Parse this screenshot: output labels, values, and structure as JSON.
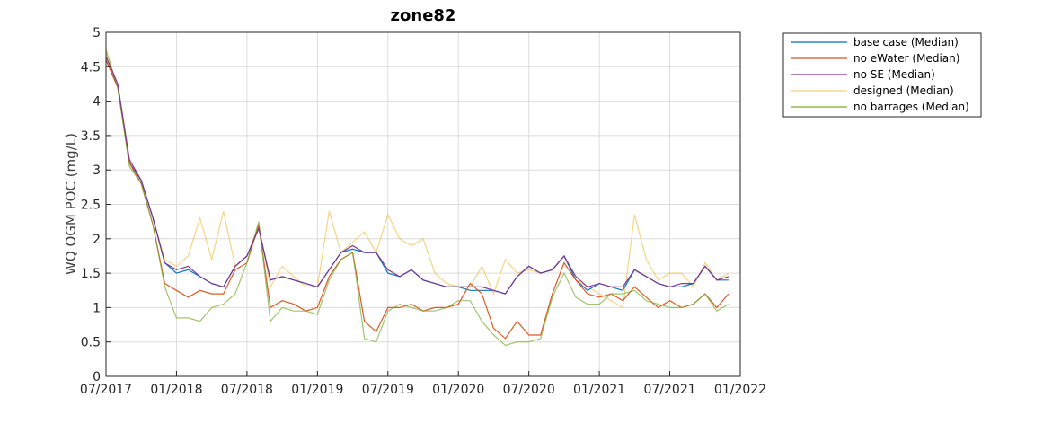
{
  "chart_data": {
    "type": "line",
    "title": "zone82",
    "xlabel": "",
    "ylabel": "WQ OGM POC (mg/L)",
    "ylim": [
      0,
      5
    ],
    "yticks": [
      "0",
      "0.5",
      "1",
      "1.5",
      "2",
      "2.5",
      "3",
      "3.5",
      "4",
      "4.5",
      "5"
    ],
    "xticks": [
      "07/2017",
      "01/2018",
      "07/2018",
      "01/2019",
      "07/2019",
      "01/2020",
      "07/2020",
      "01/2021",
      "07/2021",
      "01/2022"
    ],
    "grid": true,
    "legend_position": "outside-top-right",
    "series": [
      {
        "name": "base case (Median)",
        "color": "#0072bd",
        "points": [
          [
            0,
            4.6
          ],
          [
            1,
            4.2
          ],
          [
            2,
            3.1
          ],
          [
            3,
            2.85
          ],
          [
            4,
            2.3
          ],
          [
            5,
            1.65
          ],
          [
            6,
            1.5
          ],
          [
            7,
            1.55
          ],
          [
            8,
            1.45
          ],
          [
            9,
            1.35
          ],
          [
            10,
            1.3
          ],
          [
            11,
            1.6
          ],
          [
            12,
            1.75
          ],
          [
            13,
            2.15
          ],
          [
            14,
            1.4
          ],
          [
            15,
            1.45
          ],
          [
            16,
            1.4
          ],
          [
            17,
            1.35
          ],
          [
            18,
            1.3
          ],
          [
            19,
            1.55
          ],
          [
            20,
            1.8
          ],
          [
            21,
            1.85
          ],
          [
            22,
            1.8
          ],
          [
            23,
            1.8
          ],
          [
            24,
            1.5
          ],
          [
            25,
            1.45
          ],
          [
            26,
            1.55
          ],
          [
            27,
            1.4
          ],
          [
            28,
            1.35
          ],
          [
            29,
            1.3
          ],
          [
            30,
            1.3
          ],
          [
            31,
            1.25
          ],
          [
            32,
            1.25
          ],
          [
            33,
            1.25
          ],
          [
            34,
            1.2
          ],
          [
            35,
            1.45
          ],
          [
            36,
            1.6
          ],
          [
            37,
            1.5
          ],
          [
            38,
            1.55
          ],
          [
            39,
            1.75
          ],
          [
            40,
            1.4
          ],
          [
            41,
            1.25
          ],
          [
            42,
            1.35
          ],
          [
            43,
            1.3
          ],
          [
            44,
            1.25
          ],
          [
            45,
            1.55
          ],
          [
            46,
            1.45
          ],
          [
            47,
            1.35
          ],
          [
            48,
            1.3
          ],
          [
            49,
            1.3
          ],
          [
            50,
            1.35
          ],
          [
            51,
            1.6
          ],
          [
            52,
            1.4
          ],
          [
            53,
            1.4
          ]
        ]
      },
      {
        "name": "no eWater (Median)",
        "color": "#d95319",
        "points": [
          [
            0,
            4.6
          ],
          [
            1,
            4.2
          ],
          [
            2,
            3.1
          ],
          [
            3,
            2.8
          ],
          [
            4,
            2.2
          ],
          [
            5,
            1.35
          ],
          [
            6,
            1.25
          ],
          [
            7,
            1.15
          ],
          [
            8,
            1.25
          ],
          [
            9,
            1.2
          ],
          [
            10,
            1.2
          ],
          [
            11,
            1.55
          ],
          [
            12,
            1.65
          ],
          [
            13,
            2.2
          ],
          [
            14,
            1.0
          ],
          [
            15,
            1.1
          ],
          [
            16,
            1.05
          ],
          [
            17,
            0.95
          ],
          [
            18,
            1.0
          ],
          [
            19,
            1.45
          ],
          [
            20,
            1.7
          ],
          [
            21,
            1.8
          ],
          [
            22,
            0.8
          ],
          [
            23,
            0.65
          ],
          [
            24,
            1.0
          ],
          [
            25,
            1.0
          ],
          [
            26,
            1.05
          ],
          [
            27,
            0.95
          ],
          [
            28,
            1.0
          ],
          [
            29,
            1.0
          ],
          [
            30,
            1.05
          ],
          [
            31,
            1.35
          ],
          [
            32,
            1.2
          ],
          [
            33,
            0.7
          ],
          [
            34,
            0.55
          ],
          [
            35,
            0.8
          ],
          [
            36,
            0.6
          ],
          [
            37,
            0.6
          ],
          [
            38,
            1.2
          ],
          [
            39,
            1.65
          ],
          [
            40,
            1.4
          ],
          [
            41,
            1.2
          ],
          [
            42,
            1.15
          ],
          [
            43,
            1.2
          ],
          [
            44,
            1.1
          ],
          [
            45,
            1.3
          ],
          [
            46,
            1.15
          ],
          [
            47,
            1.0
          ],
          [
            48,
            1.1
          ],
          [
            49,
            1.0
          ],
          [
            50,
            1.05
          ],
          [
            51,
            1.2
          ],
          [
            52,
            1.0
          ],
          [
            53,
            1.2
          ]
        ]
      },
      {
        "name": "no SE (Median)",
        "color": "#7e2f8e",
        "points": [
          [
            0,
            4.65
          ],
          [
            1,
            4.25
          ],
          [
            2,
            3.15
          ],
          [
            3,
            2.85
          ],
          [
            4,
            2.3
          ],
          [
            5,
            1.65
          ],
          [
            6,
            1.55
          ],
          [
            7,
            1.6
          ],
          [
            8,
            1.45
          ],
          [
            9,
            1.35
          ],
          [
            10,
            1.3
          ],
          [
            11,
            1.6
          ],
          [
            12,
            1.75
          ],
          [
            13,
            2.15
          ],
          [
            14,
            1.4
          ],
          [
            15,
            1.45
          ],
          [
            16,
            1.4
          ],
          [
            17,
            1.35
          ],
          [
            18,
            1.3
          ],
          [
            19,
            1.55
          ],
          [
            20,
            1.8
          ],
          [
            21,
            1.9
          ],
          [
            22,
            1.8
          ],
          [
            23,
            1.8
          ],
          [
            24,
            1.55
          ],
          [
            25,
            1.45
          ],
          [
            26,
            1.55
          ],
          [
            27,
            1.4
          ],
          [
            28,
            1.35
          ],
          [
            29,
            1.3
          ],
          [
            30,
            1.3
          ],
          [
            31,
            1.3
          ],
          [
            32,
            1.3
          ],
          [
            33,
            1.25
          ],
          [
            34,
            1.2
          ],
          [
            35,
            1.45
          ],
          [
            36,
            1.6
          ],
          [
            37,
            1.5
          ],
          [
            38,
            1.55
          ],
          [
            39,
            1.75
          ],
          [
            40,
            1.45
          ],
          [
            41,
            1.3
          ],
          [
            42,
            1.35
          ],
          [
            43,
            1.3
          ],
          [
            44,
            1.3
          ],
          [
            45,
            1.55
          ],
          [
            46,
            1.45
          ],
          [
            47,
            1.35
          ],
          [
            48,
            1.3
          ],
          [
            49,
            1.35
          ],
          [
            50,
            1.35
          ],
          [
            51,
            1.6
          ],
          [
            52,
            1.4
          ],
          [
            53,
            1.45
          ]
        ]
      },
      {
        "name": "designed (Median)",
        "color": "#edb120",
        "points": [
          [
            0,
            4.7
          ],
          [
            1,
            4.2
          ],
          [
            2,
            3.1
          ],
          [
            3,
            2.85
          ],
          [
            4,
            2.3
          ],
          [
            5,
            1.7
          ],
          [
            6,
            1.6
          ],
          [
            7,
            1.75
          ],
          [
            8,
            2.3
          ],
          [
            9,
            1.7
          ],
          [
            10,
            2.4
          ],
          [
            11,
            1.6
          ],
          [
            12,
            1.75
          ],
          [
            13,
            2.2
          ],
          [
            14,
            1.3
          ],
          [
            15,
            1.6
          ],
          [
            16,
            1.45
          ],
          [
            17,
            1.3
          ],
          [
            18,
            1.3
          ],
          [
            19,
            2.4
          ],
          [
            20,
            1.8
          ],
          [
            21,
            1.95
          ],
          [
            22,
            2.1
          ],
          [
            23,
            1.8
          ],
          [
            24,
            2.35
          ],
          [
            25,
            2.0
          ],
          [
            26,
            1.9
          ],
          [
            27,
            2.0
          ],
          [
            28,
            1.5
          ],
          [
            29,
            1.35
          ],
          [
            30,
            1.3
          ],
          [
            31,
            1.3
          ],
          [
            32,
            1.6
          ],
          [
            33,
            1.2
          ],
          [
            34,
            1.7
          ],
          [
            35,
            1.5
          ],
          [
            36,
            1.55
          ],
          [
            37,
            1.5
          ],
          [
            38,
            1.55
          ],
          [
            39,
            1.75
          ],
          [
            40,
            1.4
          ],
          [
            41,
            1.3
          ],
          [
            42,
            1.2
          ],
          [
            43,
            1.1
          ],
          [
            44,
            1.0
          ],
          [
            45,
            2.35
          ],
          [
            46,
            1.7
          ],
          [
            47,
            1.4
          ],
          [
            48,
            1.5
          ],
          [
            49,
            1.5
          ],
          [
            50,
            1.3
          ],
          [
            51,
            1.65
          ],
          [
            52,
            1.4
          ],
          [
            53,
            1.5
          ]
        ]
      },
      {
        "name": "no barrages (Median)",
        "color": "#77ac30",
        "points": [
          [
            0,
            4.75
          ],
          [
            1,
            4.2
          ],
          [
            2,
            3.05
          ],
          [
            3,
            2.8
          ],
          [
            4,
            2.2
          ],
          [
            5,
            1.3
          ],
          [
            6,
            0.85
          ],
          [
            7,
            0.85
          ],
          [
            8,
            0.8
          ],
          [
            9,
            1.0
          ],
          [
            10,
            1.05
          ],
          [
            11,
            1.2
          ],
          [
            12,
            1.65
          ],
          [
            13,
            2.25
          ],
          [
            14,
            0.8
          ],
          [
            15,
            1.0
          ],
          [
            16,
            0.95
          ],
          [
            17,
            0.95
          ],
          [
            18,
            0.9
          ],
          [
            19,
            1.4
          ],
          [
            20,
            1.7
          ],
          [
            21,
            1.8
          ],
          [
            22,
            0.55
          ],
          [
            23,
            0.5
          ],
          [
            24,
            0.95
          ],
          [
            25,
            1.05
          ],
          [
            26,
            1.0
          ],
          [
            27,
            0.95
          ],
          [
            28,
            0.95
          ],
          [
            29,
            1.0
          ],
          [
            30,
            1.1
          ],
          [
            31,
            1.1
          ],
          [
            32,
            0.8
          ],
          [
            33,
            0.6
          ],
          [
            34,
            0.45
          ],
          [
            35,
            0.5
          ],
          [
            36,
            0.5
          ],
          [
            37,
            0.55
          ],
          [
            38,
            1.15
          ],
          [
            39,
            1.5
          ],
          [
            40,
            1.15
          ],
          [
            41,
            1.05
          ],
          [
            42,
            1.05
          ],
          [
            43,
            1.2
          ],
          [
            44,
            1.2
          ],
          [
            45,
            1.25
          ],
          [
            46,
            1.1
          ],
          [
            47,
            1.05
          ],
          [
            48,
            1.0
          ],
          [
            49,
            1.0
          ],
          [
            50,
            1.05
          ],
          [
            51,
            1.2
          ],
          [
            52,
            0.95
          ],
          [
            53,
            1.05
          ]
        ]
      }
    ]
  }
}
